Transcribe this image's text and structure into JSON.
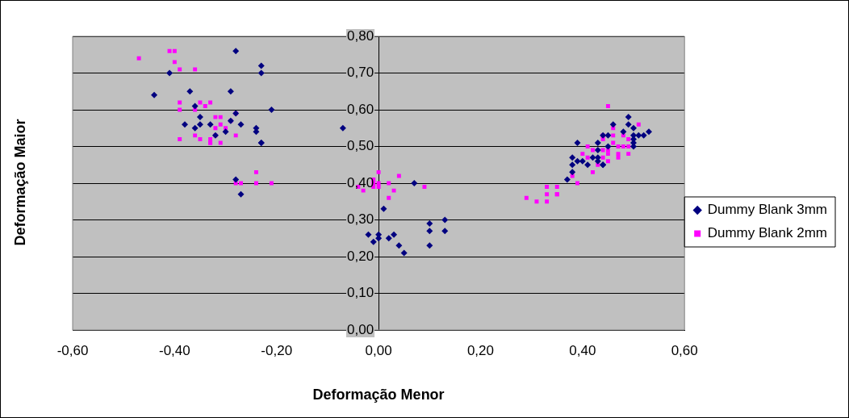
{
  "chart_data": {
    "type": "scatter",
    "xlabel": "Deformação Menor",
    "ylabel": "Deformação Maior",
    "xlim": [
      -0.6,
      0.6
    ],
    "xticks": [
      {
        "value": -0.6,
        "label": "-0,60"
      },
      {
        "value": -0.4,
        "label": "-0,40"
      },
      {
        "value": -0.2,
        "label": "-0,20"
      },
      {
        "value": 0,
        "label": "0,00"
      },
      {
        "value": 0.2,
        "label": "0,20"
      },
      {
        "value": 0.4,
        "label": "0,40"
      },
      {
        "value": 0.6,
        "label": "0,60"
      }
    ],
    "ylim": [
      0,
      0.8
    ],
    "yticks": [
      {
        "value": 0,
        "label": "0,00"
      },
      {
        "value": 0.1,
        "label": "0,10"
      },
      {
        "value": 0.2,
        "label": "0,20"
      },
      {
        "value": 0.3,
        "label": "0,30"
      },
      {
        "value": 0.4,
        "label": "0,40"
      },
      {
        "value": 0.5,
        "label": "0,50"
      },
      {
        "value": 0.6,
        "label": "0,60"
      },
      {
        "value": 0.7,
        "label": "0,70"
      },
      {
        "value": 0.8,
        "label": "0,80"
      }
    ],
    "grid": "y",
    "legend": "right",
    "series": [
      {
        "name": "Dummy Blank 3mm",
        "color": "#000080",
        "marker": "diamond",
        "x": [
          -0.44,
          -0.41,
          -0.37,
          -0.29,
          -0.28,
          -0.23,
          -0.23,
          -0.21,
          -0.36,
          -0.35,
          -0.28,
          -0.29,
          -0.27,
          -0.38,
          -0.36,
          -0.35,
          -0.33,
          -0.32,
          -0.3,
          -0.24,
          -0.24,
          -0.23,
          -0.23,
          -0.28,
          -0.27,
          -0.07,
          0.01,
          0.07,
          -0.02,
          -0.01,
          0.0,
          0.0,
          0.02,
          0.03,
          0.04,
          0.05,
          0.1,
          0.1,
          0.1,
          0.13,
          0.13,
          0.37,
          0.38,
          0.38,
          0.39,
          0.38,
          0.39,
          0.4,
          0.41,
          0.42,
          0.43,
          0.43,
          0.43,
          0.44,
          0.44,
          0.44,
          0.45,
          0.45,
          0.46,
          0.48,
          0.49,
          0.49,
          0.5,
          0.5,
          0.5,
          0.5,
          0.5,
          0.51,
          0.52,
          0.53,
          0.43
        ],
        "values": [
          0.64,
          0.7,
          0.65,
          0.65,
          0.76,
          0.72,
          0.7,
          0.6,
          0.61,
          0.58,
          0.59,
          0.57,
          0.56,
          0.56,
          0.55,
          0.56,
          0.56,
          0.53,
          0.54,
          0.54,
          0.55,
          0.51,
          0.51,
          0.41,
          0.37,
          0.55,
          0.33,
          0.4,
          0.26,
          0.24,
          0.26,
          0.25,
          0.25,
          0.26,
          0.23,
          0.21,
          0.29,
          0.27,
          0.23,
          0.3,
          0.27,
          0.41,
          0.43,
          0.45,
          0.46,
          0.47,
          0.51,
          0.46,
          0.45,
          0.47,
          0.49,
          0.51,
          0.46,
          0.45,
          0.45,
          0.53,
          0.53,
          0.5,
          0.56,
          0.54,
          0.58,
          0.56,
          0.55,
          0.53,
          0.52,
          0.51,
          0.5,
          0.53,
          0.53,
          0.54,
          0.47
        ]
      },
      {
        "name": "Dummy Blank 2mm",
        "color": "#ff00ff",
        "marker": "square",
        "x": [
          -0.47,
          -0.41,
          -0.4,
          -0.4,
          -0.39,
          -0.36,
          -0.39,
          -0.39,
          -0.36,
          -0.35,
          -0.34,
          -0.33,
          -0.28,
          -0.32,
          -0.31,
          -0.31,
          -0.29,
          -0.3,
          -0.32,
          -0.32,
          -0.28,
          -0.39,
          -0.36,
          -0.35,
          -0.33,
          -0.33,
          -0.33,
          -0.31,
          -0.24,
          -0.24,
          -0.27,
          -0.28,
          -0.21,
          0.0,
          -0.01,
          -0.04,
          -0.03,
          -0.01,
          -0.01,
          0.0,
          0.0,
          0.02,
          0.04,
          0.03,
          0.02,
          0.09,
          0.29,
          0.31,
          0.33,
          0.33,
          0.33,
          0.35,
          0.35,
          0.35,
          0.39,
          0.38,
          0.42,
          0.43,
          0.4,
          0.41,
          0.41,
          0.42,
          0.44,
          0.44,
          0.45,
          0.46,
          0.46,
          0.48,
          0.49,
          0.51,
          0.44,
          0.45,
          0.46,
          0.47,
          0.48,
          0.49,
          0.49,
          0.44,
          0.45,
          0.47,
          0.45,
          0.47
        ],
        "values": [
          0.74,
          0.76,
          0.76,
          0.73,
          0.71,
          0.71,
          0.62,
          0.6,
          0.6,
          0.62,
          0.61,
          0.62,
          0.59,
          0.58,
          0.58,
          0.56,
          0.57,
          0.55,
          0.55,
          0.53,
          0.53,
          0.52,
          0.53,
          0.52,
          0.52,
          0.51,
          0.51,
          0.51,
          0.43,
          0.4,
          0.4,
          0.4,
          0.4,
          0.43,
          0.41,
          0.39,
          0.38,
          0.4,
          0.39,
          0.4,
          0.39,
          0.4,
          0.42,
          0.38,
          0.36,
          0.39,
          0.36,
          0.35,
          0.35,
          0.39,
          0.37,
          0.39,
          0.37,
          0.37,
          0.4,
          0.42,
          0.43,
          0.45,
          0.48,
          0.47,
          0.5,
          0.49,
          0.52,
          0.53,
          0.61,
          0.55,
          0.53,
          0.53,
          0.52,
          0.56,
          0.49,
          0.49,
          0.51,
          0.5,
          0.5,
          0.5,
          0.48,
          0.47,
          0.48,
          0.47,
          0.46,
          0.48
        ]
      }
    ]
  }
}
